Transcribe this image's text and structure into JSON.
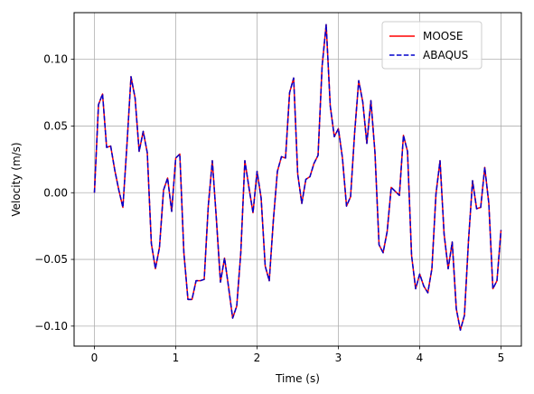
{
  "chart_data": {
    "type": "line",
    "title": "",
    "xlabel": "Time (s)",
    "ylabel": "Velocity (m/s)",
    "xlim": [
      -0.25,
      5.25
    ],
    "ylim": [
      -0.115,
      0.135
    ],
    "xticks": [
      0,
      1,
      2,
      3,
      4,
      5
    ],
    "xtick_labels": [
      "0",
      "1",
      "2",
      "3",
      "4",
      "5"
    ],
    "yticks": [
      -0.1,
      -0.05,
      0.0,
      0.05,
      0.1
    ],
    "ytick_labels": [
      "−0.10",
      "−0.05",
      "0.00",
      "0.05",
      "0.10"
    ],
    "grid": true,
    "legend_position": "top-right",
    "x": [
      0.0,
      0.05,
      0.1,
      0.15,
      0.2,
      0.25,
      0.3,
      0.35,
      0.4,
      0.45,
      0.5,
      0.55,
      0.6,
      0.65,
      0.7,
      0.75,
      0.8,
      0.85,
      0.9,
      0.95,
      1.0,
      1.05,
      1.1,
      1.15,
      1.2,
      1.25,
      1.3,
      1.35,
      1.4,
      1.45,
      1.5,
      1.55,
      1.6,
      1.65,
      1.7,
      1.75,
      1.8,
      1.85,
      1.9,
      1.95,
      2.0,
      2.05,
      2.1,
      2.15,
      2.2,
      2.25,
      2.3,
      2.35,
      2.4,
      2.45,
      2.5,
      2.55,
      2.6,
      2.65,
      2.7,
      2.75,
      2.8,
      2.85,
      2.9,
      2.95,
      3.0,
      3.05,
      3.1,
      3.15,
      3.2,
      3.25,
      3.3,
      3.35,
      3.4,
      3.45,
      3.5,
      3.55,
      3.6,
      3.65,
      3.7,
      3.75,
      3.8,
      3.85,
      3.9,
      3.95,
      4.0,
      4.05,
      4.1,
      4.15,
      4.2,
      4.25,
      4.3,
      4.35,
      4.4,
      4.45,
      4.5,
      4.55,
      4.6,
      4.65,
      4.7,
      4.75,
      4.8,
      4.85,
      4.9,
      4.95,
      5.0
    ],
    "series": [
      {
        "name": "MOOSE",
        "color": "#ff0000",
        "style": "solid",
        "values": [
          0.0,
          0.066,
          0.074,
          0.034,
          0.035,
          0.017,
          0.002,
          -0.011,
          0.036,
          0.087,
          0.071,
          0.031,
          0.046,
          0.03,
          -0.038,
          -0.057,
          -0.041,
          0.002,
          0.011,
          -0.014,
          0.026,
          0.029,
          -0.045,
          -0.08,
          -0.08,
          -0.066,
          -0.066,
          -0.065,
          -0.01,
          0.024,
          -0.02,
          -0.067,
          -0.049,
          -0.071,
          -0.094,
          -0.085,
          -0.045,
          0.024,
          0.004,
          -0.015,
          0.016,
          -0.004,
          -0.055,
          -0.066,
          -0.021,
          0.016,
          0.027,
          0.026,
          0.075,
          0.086,
          0.014,
          -0.008,
          0.01,
          0.012,
          0.022,
          0.028,
          0.095,
          0.126,
          0.065,
          0.042,
          0.048,
          0.026,
          -0.01,
          -0.003,
          0.045,
          0.084,
          0.068,
          0.037,
          0.069,
          0.03,
          -0.039,
          -0.045,
          -0.029,
          0.004,
          0.001,
          -0.002,
          0.043,
          0.031,
          -0.047,
          -0.072,
          -0.061,
          -0.07,
          -0.075,
          -0.057,
          -0.001,
          0.024,
          -0.031,
          -0.057,
          -0.037,
          -0.087,
          -0.103,
          -0.092,
          -0.036,
          0.009,
          -0.012,
          -0.011,
          0.019,
          -0.008,
          -0.072,
          -0.066,
          -0.028
        ]
      },
      {
        "name": "ABAQUS",
        "color": "#0000cc",
        "style": "dashed",
        "values": [
          0.0,
          0.066,
          0.074,
          0.034,
          0.035,
          0.017,
          0.002,
          -0.011,
          0.036,
          0.087,
          0.071,
          0.031,
          0.046,
          0.03,
          -0.038,
          -0.057,
          -0.041,
          0.002,
          0.011,
          -0.014,
          0.026,
          0.029,
          -0.045,
          -0.08,
          -0.08,
          -0.066,
          -0.066,
          -0.065,
          -0.01,
          0.024,
          -0.02,
          -0.067,
          -0.049,
          -0.071,
          -0.094,
          -0.085,
          -0.045,
          0.024,
          0.004,
          -0.015,
          0.016,
          -0.004,
          -0.055,
          -0.066,
          -0.021,
          0.016,
          0.027,
          0.026,
          0.075,
          0.086,
          0.014,
          -0.008,
          0.01,
          0.012,
          0.022,
          0.028,
          0.095,
          0.126,
          0.065,
          0.042,
          0.048,
          0.026,
          -0.01,
          -0.003,
          0.045,
          0.084,
          0.068,
          0.037,
          0.069,
          0.03,
          -0.039,
          -0.045,
          -0.029,
          0.004,
          0.001,
          -0.002,
          0.043,
          0.031,
          -0.047,
          -0.072,
          -0.061,
          -0.07,
          -0.075,
          -0.057,
          -0.001,
          0.024,
          -0.031,
          -0.057,
          -0.037,
          -0.087,
          -0.103,
          -0.092,
          -0.036,
          0.009,
          -0.012,
          -0.011,
          0.019,
          -0.008,
          -0.072,
          -0.066,
          -0.028
        ]
      }
    ]
  }
}
